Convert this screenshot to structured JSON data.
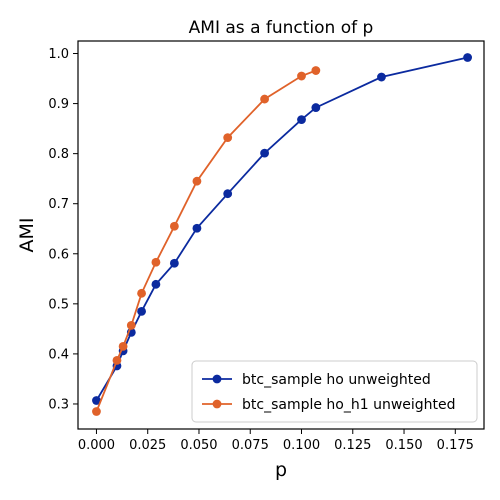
{
  "chart_data": {
    "type": "line",
    "title": "AMI as a function of p",
    "xlabel": "p",
    "ylabel": "AMI",
    "xlim": [
      -0.009,
      0.189
    ],
    "ylim": [
      0.25,
      1.025
    ],
    "xticks": [
      0.0,
      0.025,
      0.05,
      0.075,
      0.1,
      0.125,
      0.15,
      0.175
    ],
    "xtick_labels": [
      "0.000",
      "0.025",
      "0.050",
      "0.075",
      "0.100",
      "0.125",
      "0.150",
      "0.175"
    ],
    "yticks": [
      0.3,
      0.4,
      0.5,
      0.6,
      0.7,
      0.8,
      0.9,
      1.0
    ],
    "ytick_labels": [
      "0.3",
      "0.4",
      "0.5",
      "0.6",
      "0.7",
      "0.8",
      "0.9",
      "1.0"
    ],
    "grid": false,
    "legend_position": "lower-right",
    "series": [
      {
        "name": "btc_sample ho unweighted",
        "color": "#0b2a9f",
        "x": [
          0.0,
          0.01,
          0.013,
          0.017,
          0.022,
          0.029,
          0.038,
          0.049,
          0.064,
          0.082,
          0.1,
          0.107,
          0.139,
          0.181
        ],
        "y": [
          0.307,
          0.376,
          0.406,
          0.443,
          0.485,
          0.539,
          0.581,
          0.651,
          0.72,
          0.801,
          0.868,
          0.892,
          0.953,
          0.992
        ]
      },
      {
        "name": "btc_sample ho_h1 unweighted",
        "color": "#e0622a",
        "x": [
          0.0,
          0.01,
          0.013,
          0.017,
          0.022,
          0.029,
          0.038,
          0.049,
          0.064,
          0.082,
          0.1,
          0.107
        ],
        "y": [
          0.285,
          0.387,
          0.415,
          0.457,
          0.521,
          0.583,
          0.655,
          0.745,
          0.832,
          0.909,
          0.955,
          0.966
        ]
      }
    ]
  }
}
